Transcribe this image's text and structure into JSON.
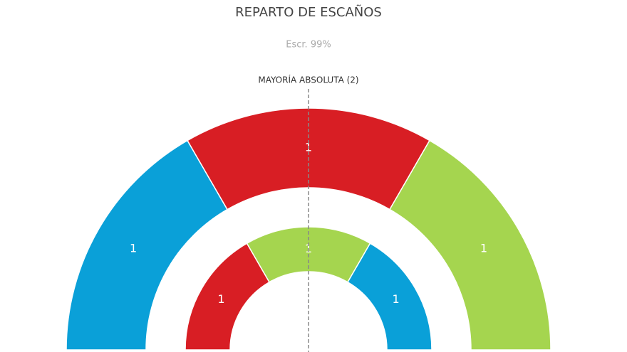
{
  "chart_data": {
    "type": "semicircle",
    "title": "REPARTO DE ESCAÑOS",
    "subtitle": "Escr. 99%",
    "annotation": "MAYORÍA ABSOLUTA (2)",
    "rings": [
      {
        "values": [
          1,
          1,
          1
        ],
        "colors": [
          "#0aa0d8",
          "#d81e24",
          "#a5d54f"
        ]
      },
      {
        "values": [
          1,
          1,
          1
        ],
        "colors": [
          "#d81e24",
          "#a5d54f",
          "#0aa0d8"
        ]
      }
    ]
  }
}
